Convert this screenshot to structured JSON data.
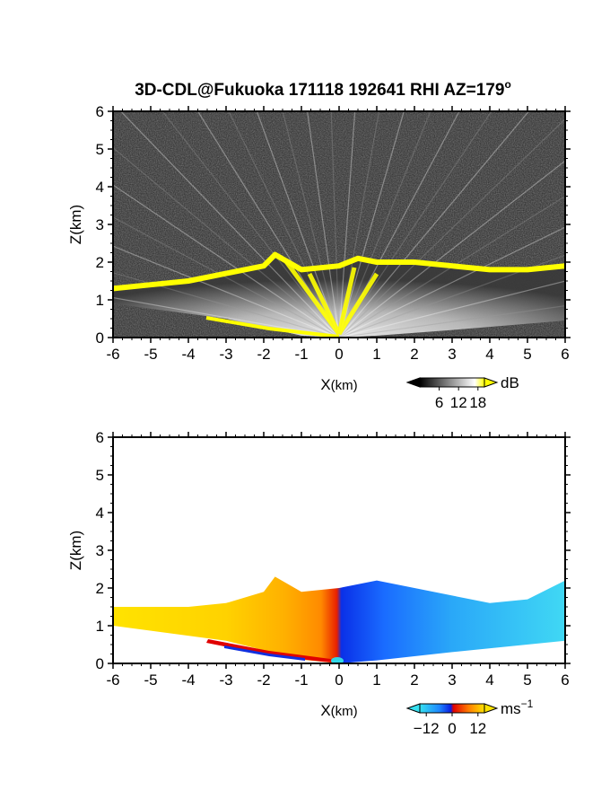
{
  "chart_data": [
    {
      "type": "heatmap",
      "title": "3D-CDL@Fukuoka 171118 192641 RHI AZ=179",
      "title_superscript": "o",
      "xlabel": "X",
      "xlabel_unit": "(km)",
      "ylabel": "Z(km)",
      "xlim": [
        -6,
        6
      ],
      "ylim": [
        0,
        6
      ],
      "xticks": [
        "-6",
        "-5",
        "-4",
        "-3",
        "-2",
        "-1",
        "0",
        "1",
        "2",
        "3",
        "4",
        "5",
        "6"
      ],
      "yticks": [
        "0",
        "1",
        "2",
        "3",
        "4",
        "5",
        "6"
      ],
      "colorbar": {
        "unit": "dB",
        "ticks": [
          "6",
          "12",
          "18"
        ],
        "tick_values": [
          6,
          12,
          18
        ],
        "range": [
          0,
          20
        ],
        "colors": [
          "#000000",
          "#ffffff",
          "#ffff00"
        ]
      },
      "echo_top_km": [
        {
          "x": -6,
          "z": 1.3
        },
        {
          "x": -5,
          "z": 1.4
        },
        {
          "x": -4,
          "z": 1.5
        },
        {
          "x": -3,
          "z": 1.7
        },
        {
          "x": -2,
          "z": 1.9
        },
        {
          "x": -1.7,
          "z": 2.2
        },
        {
          "x": -1,
          "z": 1.8
        },
        {
          "x": 0,
          "z": 1.9
        },
        {
          "x": 0.5,
          "z": 2.1
        },
        {
          "x": 1,
          "z": 2.0
        },
        {
          "x": 2,
          "z": 2.0
        },
        {
          "x": 3,
          "z": 1.9
        },
        {
          "x": 4,
          "z": 1.8
        },
        {
          "x": 5,
          "z": 1.8
        },
        {
          "x": 6,
          "z": 1.9
        }
      ],
      "background_colors": [
        "#2b2b2b",
        "#111111",
        "#4a4a4a"
      ]
    },
    {
      "type": "heatmap",
      "xlabel": "X",
      "xlabel_unit": "(km)",
      "ylabel": "Z(km)",
      "xlim": [
        -6,
        6
      ],
      "ylim": [
        0,
        6
      ],
      "xticks": [
        "-6",
        "-5",
        "-4",
        "-3",
        "-2",
        "-1",
        "0",
        "1",
        "2",
        "3",
        "4",
        "5",
        "6"
      ],
      "yticks": [
        "0",
        "1",
        "2",
        "3",
        "4",
        "5",
        "6"
      ],
      "colorbar": {
        "unit": "ms",
        "unit_superscript": "−1",
        "ticks": [
          "−12",
          "0",
          "12"
        ],
        "tick_values": [
          -12,
          0,
          12
        ],
        "range": [
          -15,
          15
        ],
        "colors": [
          "#36e0f0",
          "#1e88ff",
          "#0a1ee0",
          "#e00000",
          "#ff7a00",
          "#ffe300"
        ]
      },
      "velocity_ms": [
        {
          "x": -6,
          "v": 12
        },
        {
          "x": -4,
          "v": 11
        },
        {
          "x": -3,
          "v": 9
        },
        {
          "x": -2,
          "v": 7
        },
        {
          "x": -1,
          "v": 4
        },
        {
          "x": -0.2,
          "v": 1
        },
        {
          "x": 0.2,
          "v": -1
        },
        {
          "x": 1,
          "v": -4
        },
        {
          "x": 2,
          "v": -6
        },
        {
          "x": 3,
          "v": -8
        },
        {
          "x": 4,
          "v": -10
        },
        {
          "x": 6,
          "v": -12
        }
      ],
      "echo_top_km": [
        {
          "x": -6,
          "z": 1.5
        },
        {
          "x": -4,
          "z": 1.5
        },
        {
          "x": -3,
          "z": 1.6
        },
        {
          "x": -2,
          "z": 1.9
        },
        {
          "x": -1.7,
          "z": 2.3
        },
        {
          "x": -1,
          "z": 1.9
        },
        {
          "x": 0,
          "z": 2.0
        },
        {
          "x": 1,
          "z": 2.2
        },
        {
          "x": 2,
          "z": 2.0
        },
        {
          "x": 3,
          "z": 1.8
        },
        {
          "x": 4,
          "z": 1.6
        },
        {
          "x": 5,
          "z": 1.7
        },
        {
          "x": 6,
          "z": 2.2
        }
      ]
    }
  ]
}
